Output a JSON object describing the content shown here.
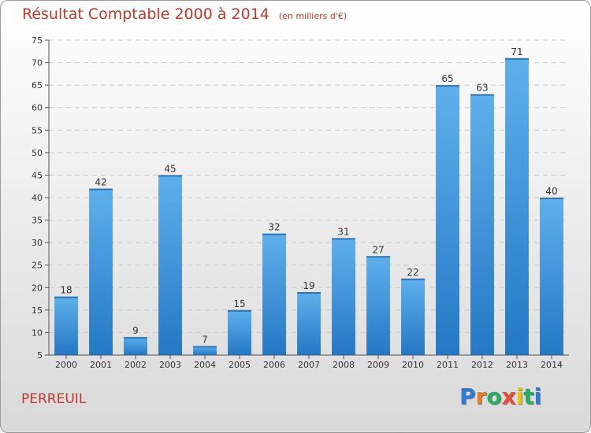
{
  "title": "Résultat Comptable 2000 à 2014",
  "subtitle": "(en milliers d'€)",
  "place": "PERREUIL",
  "logo": {
    "letters": [
      "P",
      "r",
      "o",
      "x",
      "i",
      "t",
      "i"
    ],
    "colors": [
      "#2d7bd6",
      "#e67e22",
      "#27ae60",
      "#e74c3c",
      "#f1c40f",
      "#27ae60",
      "#2d7bd6"
    ]
  },
  "colors": {
    "bar": "#3a8fd6",
    "bar_light": "#5eb0ec",
    "bar_dark": "#2478c4",
    "title": "#c0392b"
  },
  "chart_data": {
    "type": "bar",
    "title": "Résultat Comptable 2000 à 2014",
    "subtitle": "(en milliers d'€)",
    "categories": [
      "2000",
      "2001",
      "2002",
      "2003",
      "2004",
      "2005",
      "2006",
      "2007",
      "2008",
      "2009",
      "2010",
      "2011",
      "2012",
      "2013",
      "2014"
    ],
    "values": [
      18,
      42,
      9,
      45,
      7,
      15,
      32,
      19,
      31,
      27,
      22,
      65,
      63,
      71,
      40
    ],
    "ylim": [
      5,
      75
    ],
    "yticks": [
      5,
      10,
      15,
      20,
      25,
      30,
      35,
      40,
      45,
      50,
      55,
      60,
      65,
      70,
      75
    ],
    "grid": true
  }
}
